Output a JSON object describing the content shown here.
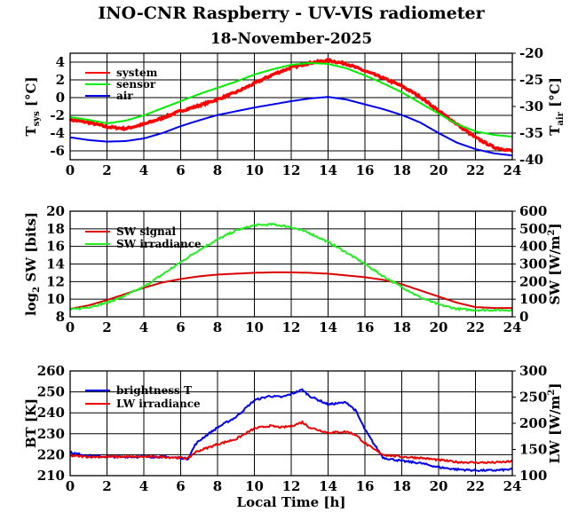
{
  "title": "INO-CNR Raspberry - UV-VIS radiometer",
  "date": "18-November-2025",
  "chart_data": [
    {
      "type": "line",
      "id": "temp",
      "x_ticks": [
        0,
        2,
        4,
        6,
        8,
        10,
        12,
        14,
        16,
        18,
        20,
        22,
        24
      ],
      "x_labels": [
        "0",
        "2",
        "4",
        "6",
        "8",
        "10",
        "12",
        "14",
        "16",
        "18",
        "20",
        "22",
        "24"
      ],
      "xlim": [
        0,
        24
      ],
      "ylim_left": [
        -7,
        5
      ],
      "yticks_left": [
        -6,
        -4,
        -2,
        0,
        2,
        4
      ],
      "ylim_right": [
        -40,
        -20
      ],
      "yticks_right": [
        -40,
        -35,
        -30,
        -25,
        -20
      ],
      "ylabel_left": {
        "main": "T",
        "sub": "sys",
        "unit": "[°C]"
      },
      "ylabel_right": {
        "main": "T",
        "sub": "air",
        "unit": "[°C]"
      },
      "series": [
        {
          "name": "system",
          "color": "#ff0000",
          "axis": "left",
          "noise": true,
          "x": [
            0,
            1,
            2,
            3,
            4,
            5,
            6,
            7,
            8,
            9,
            10,
            11,
            12,
            13,
            14,
            15,
            16,
            17,
            18,
            19,
            20,
            21,
            22,
            23,
            24
          ],
          "y": [
            -2.5,
            -2.8,
            -3.3,
            -3.5,
            -3.0,
            -2.3,
            -1.5,
            -0.9,
            -0.2,
            0.6,
            1.6,
            2.6,
            3.4,
            3.9,
            4.2,
            3.8,
            3.0,
            2.2,
            1.3,
            0.1,
            -1.5,
            -3.0,
            -4.5,
            -5.6,
            -6.0
          ]
        },
        {
          "name": "sensor",
          "color": "#00ee00",
          "axis": "left",
          "x": [
            0,
            1,
            2,
            3,
            4,
            5,
            6,
            7,
            8,
            9,
            10,
            11,
            12,
            13,
            14,
            15,
            16,
            17,
            18,
            19,
            20,
            21,
            22,
            23,
            24
          ],
          "y": [
            -2.2,
            -2.5,
            -2.9,
            -2.6,
            -2.0,
            -1.2,
            -0.4,
            0.4,
            1.1,
            1.8,
            2.6,
            3.2,
            3.7,
            3.9,
            3.8,
            3.3,
            2.5,
            1.6,
            0.6,
            -0.6,
            -1.8,
            -3.0,
            -3.8,
            -4.2,
            -4.4
          ]
        },
        {
          "name": "air",
          "color": "#0000ee",
          "axis": "right",
          "x": [
            0,
            1,
            2,
            3,
            4,
            5,
            6,
            7,
            8,
            9,
            10,
            11,
            12,
            13,
            14,
            15,
            16,
            17,
            18,
            19,
            20,
            21,
            22,
            23,
            24
          ],
          "y": [
            -35.8,
            -36.3,
            -36.6,
            -36.5,
            -36.0,
            -35.0,
            -33.7,
            -32.6,
            -31.6,
            -30.9,
            -30.2,
            -29.6,
            -29.0,
            -28.5,
            -28.2,
            -28.7,
            -29.6,
            -30.5,
            -31.6,
            -33.0,
            -35.0,
            -36.8,
            -38.0,
            -38.8,
            -39.2
          ]
        }
      ]
    },
    {
      "type": "line",
      "id": "sw",
      "x_ticks": [
        0,
        2,
        4,
        6,
        8,
        10,
        12,
        14,
        16,
        18,
        20,
        22,
        24
      ],
      "x_labels": [
        "0",
        "2",
        "4",
        "6",
        "8",
        "10",
        "12",
        "14",
        "16",
        "18",
        "20",
        "22",
        "24"
      ],
      "xlim": [
        0,
        24
      ],
      "ylim_left": [
        8,
        20
      ],
      "yticks_left": [
        8,
        10,
        12,
        14,
        16,
        18,
        20
      ],
      "ylim_right": [
        0,
        600
      ],
      "yticks_right": [
        0,
        100,
        200,
        300,
        400,
        500,
        600
      ],
      "ylabel_left": {
        "pre": "log",
        "presub": "2",
        "main": " SW [bits]"
      },
      "ylabel_right": {
        "main": "SW [W/m",
        "sup": "2",
        "post": "]"
      },
      "series": [
        {
          "name": "SW signal",
          "color": "#dd0000",
          "axis": "left",
          "x": [
            0,
            1,
            2,
            3,
            4,
            5,
            6,
            7,
            8,
            9,
            10,
            11,
            12,
            13,
            14,
            15,
            16,
            17,
            18,
            19,
            20,
            21,
            22,
            23,
            24
          ],
          "y": [
            8.9,
            9.3,
            9.9,
            10.6,
            11.3,
            11.9,
            12.3,
            12.6,
            12.8,
            12.9,
            13.0,
            13.05,
            13.05,
            13.0,
            12.9,
            12.7,
            12.5,
            12.2,
            11.7,
            11.0,
            10.3,
            9.6,
            9.1,
            9.0,
            9.0
          ]
        },
        {
          "name": "SW irradiance",
          "color": "#22ee22",
          "axis": "right",
          "noise": true,
          "x": [
            0,
            1,
            2,
            3,
            4,
            5,
            6,
            7,
            8,
            9,
            10,
            11,
            12,
            13,
            14,
            15,
            16,
            17,
            18,
            19,
            20,
            21,
            22,
            23,
            24
          ],
          "y": [
            40,
            55,
            80,
            120,
            170,
            240,
            310,
            380,
            440,
            490,
            520,
            525,
            510,
            475,
            425,
            365,
            300,
            230,
            170,
            110,
            70,
            45,
            38,
            38,
            38
          ]
        }
      ]
    },
    {
      "type": "line",
      "id": "bt",
      "x_ticks": [
        0,
        2,
        4,
        6,
        8,
        10,
        12,
        14,
        16,
        18,
        20,
        22,
        24
      ],
      "x_labels": [
        "0",
        "2",
        "4",
        "6",
        "8",
        "10",
        "12",
        "14",
        "16",
        "18",
        "20",
        "22",
        "24"
      ],
      "xlim": [
        0,
        24
      ],
      "xlabel": "Local Time [h]",
      "ylim_left": [
        210,
        260
      ],
      "yticks_left": [
        210,
        220,
        230,
        240,
        250,
        260
      ],
      "ylim_right": [
        100,
        300
      ],
      "yticks_right": [
        100,
        150,
        200,
        250,
        300
      ],
      "ylabel_left": {
        "main": "BT [K]"
      },
      "ylabel_right": {
        "main": "LW [W/m",
        "sup": "2",
        "post": "]"
      },
      "series": [
        {
          "name": "brightness T",
          "color": "#0000ee",
          "axis": "left",
          "noise": true,
          "x": [
            0,
            1,
            2,
            3,
            4,
            5,
            6,
            6.4,
            6.8,
            7.2,
            8,
            9,
            10,
            10.8,
            11.5,
            12,
            12.6,
            13,
            14,
            15,
            15.5,
            16,
            16.5,
            17,
            18,
            19,
            20,
            21,
            22,
            23,
            24
          ],
          "y": [
            221,
            219.5,
            219,
            219,
            219,
            219,
            218.5,
            218,
            225,
            228,
            233,
            238,
            246,
            248,
            247.5,
            249,
            251,
            248,
            244,
            245,
            241,
            232,
            225,
            218.5,
            217,
            216,
            214,
            213,
            212.5,
            212.5,
            213
          ]
        },
        {
          "name": "LW irradiance",
          "color": "#ee0000",
          "axis": "right",
          "noise": true,
          "x": [
            0,
            1,
            2,
            3,
            4,
            5,
            6,
            6.4,
            6.8,
            7.2,
            8,
            9,
            10,
            10.8,
            11.5,
            12,
            12.6,
            13,
            14,
            15,
            15.5,
            16,
            16.5,
            17,
            18,
            19,
            20,
            21,
            22,
            23,
            24
          ],
          "y": [
            138,
            136,
            136,
            136,
            136,
            136,
            134,
            133,
            145,
            150,
            160,
            170,
            190,
            195,
            192,
            195,
            202,
            192,
            182,
            184,
            178,
            162,
            150,
            140,
            136,
            134,
            130,
            126,
            125,
            125,
            127
          ]
        }
      ]
    }
  ]
}
